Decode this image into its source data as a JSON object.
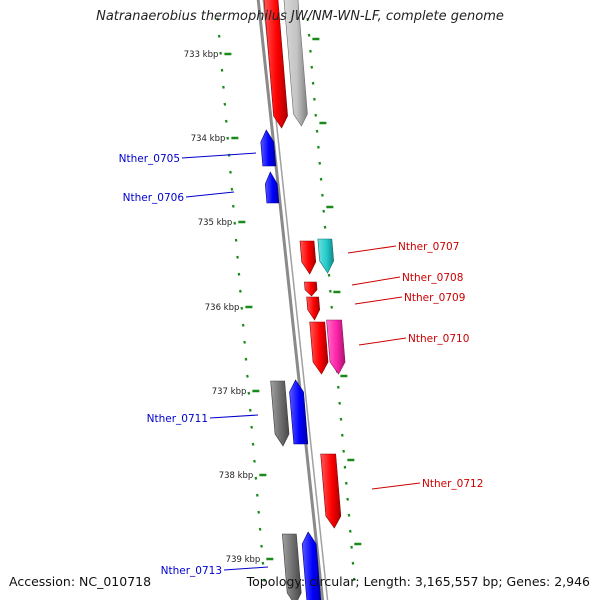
{
  "title": "Natranaerobius thermophilus JW/NM-WN-LF, complete genome",
  "footer": {
    "accession": "Accession: NC_010718",
    "summary": "Topology: circular; Length: 3,165,557 bp; Genes: 2,946"
  },
  "colors": {
    "backbone": "#8a8a8a",
    "tick_dots": "#1a8a1a",
    "reverse_label": "#0000cc",
    "forward_label": "#cc0000",
    "red": "#ff0000",
    "blue": "#0000ff",
    "grey": "#6e6e6e",
    "silver": "#c4c4c4",
    "cyan": "#22cccc",
    "magenta": "#ff22aa"
  },
  "scale": [
    "733 kbp",
    "734 kbp",
    "735 kbp",
    "736 kbp",
    "737 kbp",
    "738 kbp",
    "739 kbp"
  ],
  "genes_reverse": [
    "Nther_0705",
    "Nther_0706",
    "Nther_0711",
    "Nther_0713"
  ],
  "genes_forward": [
    "Nther_0707",
    "Nther_0708",
    "Nther_0709",
    "Nther_0710",
    "Nther_0712"
  ]
}
